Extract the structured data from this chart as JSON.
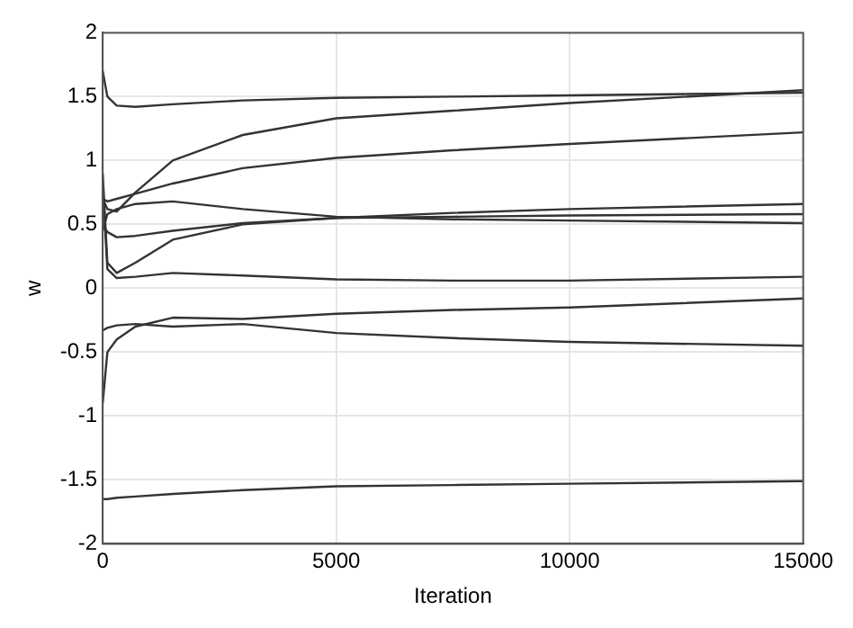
{
  "chart_data": {
    "type": "line",
    "xlabel": "Iteration",
    "ylabel": "w",
    "x": [
      0,
      100,
      300,
      700,
      1500,
      3000,
      5000,
      7500,
      10000,
      15000
    ],
    "series": [
      {
        "color": "#333333",
        "values": [
          1.7,
          1.5,
          1.43,
          1.42,
          1.44,
          1.47,
          1.49,
          1.5,
          1.51,
          1.53
        ]
      },
      {
        "color": "#333333",
        "values": [
          0.7,
          0.62,
          0.6,
          0.75,
          1.0,
          1.2,
          1.33,
          1.39,
          1.45,
          1.55
        ]
      },
      {
        "color": "#333333",
        "values": [
          0.7,
          0.68,
          0.7,
          0.74,
          0.82,
          0.94,
          1.02,
          1.08,
          1.13,
          1.22
        ]
      },
      {
        "color": "#333333",
        "values": [
          0.45,
          0.58,
          0.62,
          0.66,
          0.68,
          0.62,
          0.56,
          0.54,
          0.53,
          0.51
        ]
      },
      {
        "color": "#333333",
        "values": [
          0.5,
          0.44,
          0.4,
          0.41,
          0.45,
          0.51,
          0.55,
          0.59,
          0.62,
          0.66
        ]
      },
      {
        "color": "#333333",
        "values": [
          0.9,
          0.2,
          0.12,
          0.2,
          0.38,
          0.5,
          0.55,
          0.56,
          0.57,
          0.58
        ]
      },
      {
        "color": "#333333",
        "values": [
          0.8,
          0.15,
          0.08,
          0.09,
          0.12,
          0.1,
          0.07,
          0.06,
          0.06,
          0.09
        ]
      },
      {
        "color": "#333333",
        "values": [
          -0.33,
          -0.31,
          -0.29,
          -0.28,
          -0.3,
          -0.28,
          -0.35,
          -0.39,
          -0.42,
          -0.45
        ]
      },
      {
        "color": "#333333",
        "values": [
          -0.9,
          -0.5,
          -0.4,
          -0.3,
          -0.23,
          -0.24,
          -0.2,
          -0.17,
          -0.15,
          -0.08
        ]
      },
      {
        "color": "#333333",
        "values": [
          -1.65,
          -1.65,
          -1.64,
          -1.63,
          -1.61,
          -1.58,
          -1.55,
          -1.54,
          -1.53,
          -1.51
        ]
      }
    ],
    "xlim": [
      0,
      15000
    ],
    "xticks": [
      0,
      5000,
      10000,
      15000
    ],
    "ylim": [
      -2,
      2
    ],
    "yticks": [
      -2,
      -1.5,
      -1,
      -0.5,
      0,
      0.5,
      1,
      1.5,
      2
    ],
    "grid": true,
    "legend": false,
    "marker": "none",
    "line_style": "solid"
  }
}
